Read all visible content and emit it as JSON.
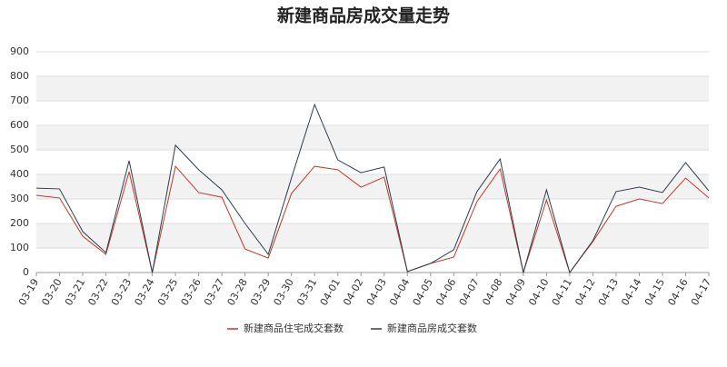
{
  "chart_data": {
    "type": "line",
    "title": "新建商品房成交量走势",
    "categories": [
      "03-19",
      "03-20",
      "03-21",
      "03-22",
      "03-23",
      "03-24",
      "03-25",
      "03-26",
      "03-27",
      "03-28",
      "03-29",
      "03-30",
      "03-31",
      "04-01",
      "04-02",
      "04-03",
      "04-04",
      "04-05",
      "04-06",
      "04-07",
      "04-08",
      "04-09",
      "04-10",
      "04-11",
      "04-12",
      "04-13",
      "04-14",
      "04-15",
      "04-16",
      "04-17"
    ],
    "series": [
      {
        "name": "新建商品住宅成交套数",
        "color": "#c0392b",
        "values": [
          315,
          304,
          148,
          74,
          411,
          0,
          433,
          326,
          307,
          96,
          59,
          322,
          433,
          419,
          348,
          389,
          4,
          37,
          63,
          289,
          422,
          0,
          296,
          0,
          126,
          270,
          300,
          281,
          385,
          304
        ]
      },
      {
        "name": "新建商品房成交套数",
        "color": "#2c3e50",
        "values": [
          344,
          341,
          167,
          81,
          456,
          0,
          519,
          419,
          337,
          200,
          74,
          385,
          685,
          459,
          407,
          430,
          4,
          37,
          93,
          330,
          463,
          0,
          337,
          0,
          130,
          330,
          348,
          326,
          448,
          333
        ]
      }
    ],
    "ylim": [
      0,
      900
    ],
    "yticks": [
      0,
      100,
      200,
      300,
      400,
      500,
      600,
      700,
      800,
      900
    ],
    "grid": true,
    "legend": "bottom"
  }
}
